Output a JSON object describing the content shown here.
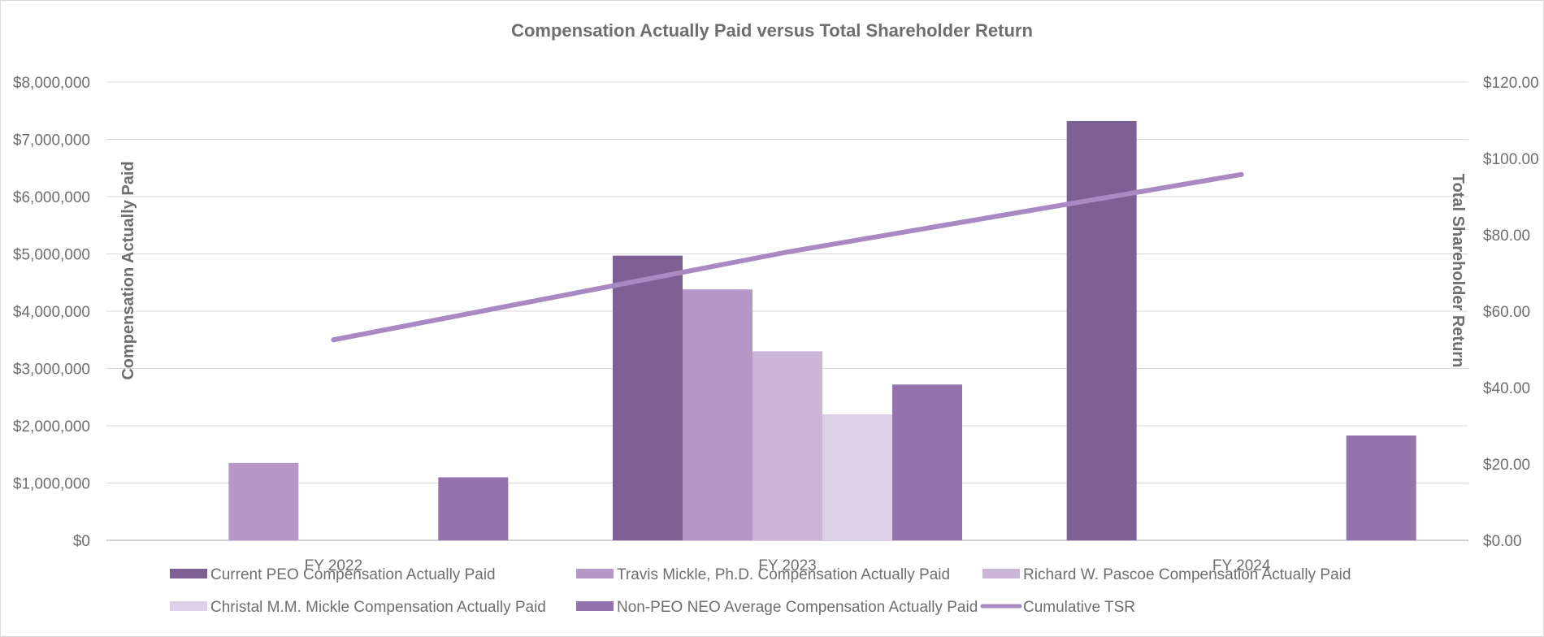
{
  "chart_data": {
    "type": "bar",
    "title": "Compensation Actually Paid versus Total Shareholder Return",
    "categories": [
      "FY 2022",
      "FY 2023",
      "FY 2024"
    ],
    "ylabel": "Compensation Actually Paid",
    "y2label": "Total Shareholder Return",
    "ylim": [
      0,
      8000000
    ],
    "y2lim": [
      0,
      120
    ],
    "yticks": [
      "$0",
      "$1,000,000",
      "$2,000,000",
      "$3,000,000",
      "$4,000,000",
      "$5,000,000",
      "$6,000,000",
      "$7,000,000",
      "$8,000,000"
    ],
    "y2ticks": [
      "$0.00",
      "$20.00",
      "$40.00",
      "$60.00",
      "$80.00",
      "$100.00",
      "$120.00"
    ],
    "grid": true,
    "legend_position": "bottom",
    "series": [
      {
        "name": "Current PEO Compensation Actually Paid",
        "color": "#7f6094",
        "values": [
          null,
          4970000,
          7320000
        ]
      },
      {
        "name": "Travis Mickle, Ph.D. Compensation Actually Paid",
        "color": "#b797c8",
        "values": [
          1350000,
          4380000,
          null
        ]
      },
      {
        "name": "Richard W. Pascoe Compensation Actually Paid",
        "color": "#cbb6da",
        "values": [
          null,
          3300000,
          null
        ]
      },
      {
        "name": "Christal M.M. Mickle Compensation Actually Paid",
        "color": "#ddd0e7",
        "values": [
          null,
          2200000,
          null
        ]
      },
      {
        "name": "Non-PEO NEO Average Compensation Actually Paid",
        "color": "#9472ac",
        "values": [
          1100000,
          2720000,
          1830000
        ]
      }
    ],
    "line_series": {
      "name": "Cumulative TSR",
      "color": "#a889c1",
      "values": [
        52.5,
        75.5,
        95.8
      ]
    }
  }
}
